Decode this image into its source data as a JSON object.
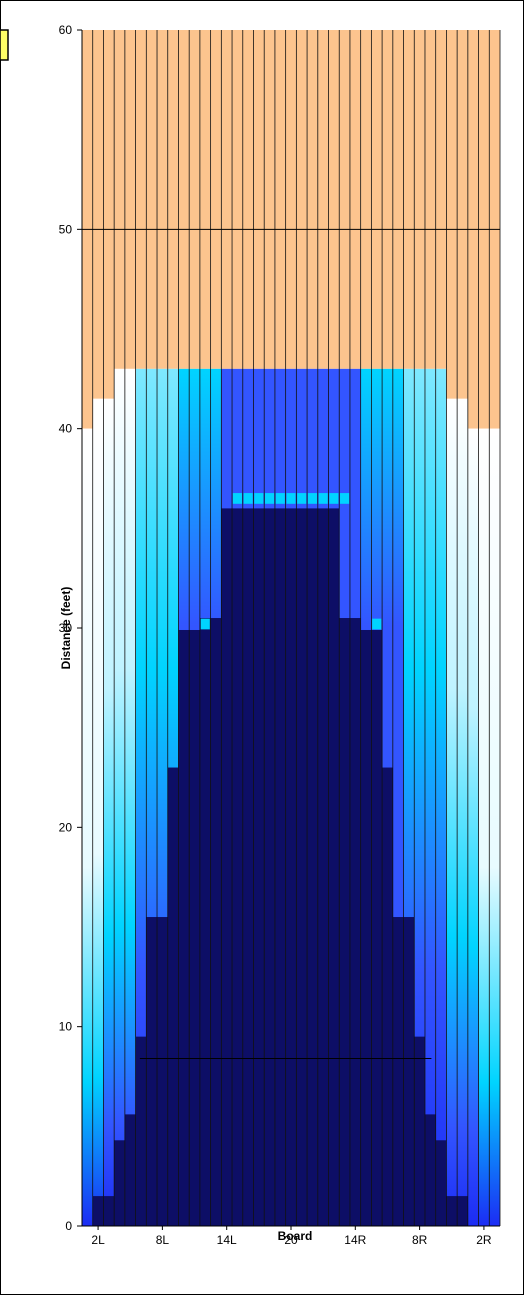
{
  "chart_data": {
    "type": "heatmap",
    "title": "",
    "xlabel": "Board",
    "ylabel": "Distance (feet)",
    "ylim": [
      0,
      60
    ],
    "yticks": [
      0,
      10,
      20,
      30,
      40,
      50,
      60
    ],
    "x_tick_labels": [
      "2L",
      "8L",
      "14L",
      "20",
      "14R",
      "8R",
      "2R"
    ],
    "x_tick_boards": [
      2,
      8,
      14,
      20,
      26,
      32,
      38
    ],
    "board_count": 39,
    "horizontal_lines": [
      8.4,
      50
    ],
    "colors": {
      "lane_top": "#FCC48E",
      "board_line": "#111111",
      "dark_pattern": "#0D0E66",
      "mid_blue": "#1C2CF4",
      "bright_blue": "#3355FF",
      "cyan": "#00D4FF",
      "white": "#FFFFFF"
    },
    "dark_pattern_heights": [
      0,
      1.5,
      1.5,
      4.3,
      5.6,
      9.5,
      15.5,
      15.5,
      23,
      29.9,
      29.9,
      30.5,
      30.5,
      36,
      36,
      36,
      36,
      36,
      36,
      36,
      36,
      36,
      36,
      36,
      30.5,
      30.5,
      29.9,
      29.9,
      23,
      15.5,
      15.5,
      9.5,
      5.6,
      4.3,
      1.5,
      1.5,
      0,
      0,
      0
    ],
    "oil_top_heights": [
      40,
      41.5,
      41.5,
      43,
      43,
      43,
      43,
      43,
      43,
      43,
      43,
      43,
      43,
      43,
      43,
      43,
      43,
      43,
      43,
      43,
      43,
      43,
      43,
      43,
      43,
      43,
      43,
      43,
      43,
      43,
      43,
      43,
      43,
      43,
      41.5,
      41.5,
      40,
      40,
      40
    ],
    "cyan_markers": [
      {
        "board": 15,
        "y": 36.5
      },
      {
        "board": 16,
        "y": 36.5
      },
      {
        "board": 17,
        "y": 36.5
      },
      {
        "board": 18,
        "y": 36.5
      },
      {
        "board": 19,
        "y": 36.5
      },
      {
        "board": 20,
        "y": 36.5
      },
      {
        "board": 21,
        "y": 36.5
      },
      {
        "board": 22,
        "y": 36.5
      },
      {
        "board": 23,
        "y": 36.5
      },
      {
        "board": 24,
        "y": 36.5
      },
      {
        "board": 25,
        "y": 36.5
      },
      {
        "board": 12,
        "y": 30.2
      },
      {
        "board": 28,
        "y": 30.2
      }
    ]
  }
}
